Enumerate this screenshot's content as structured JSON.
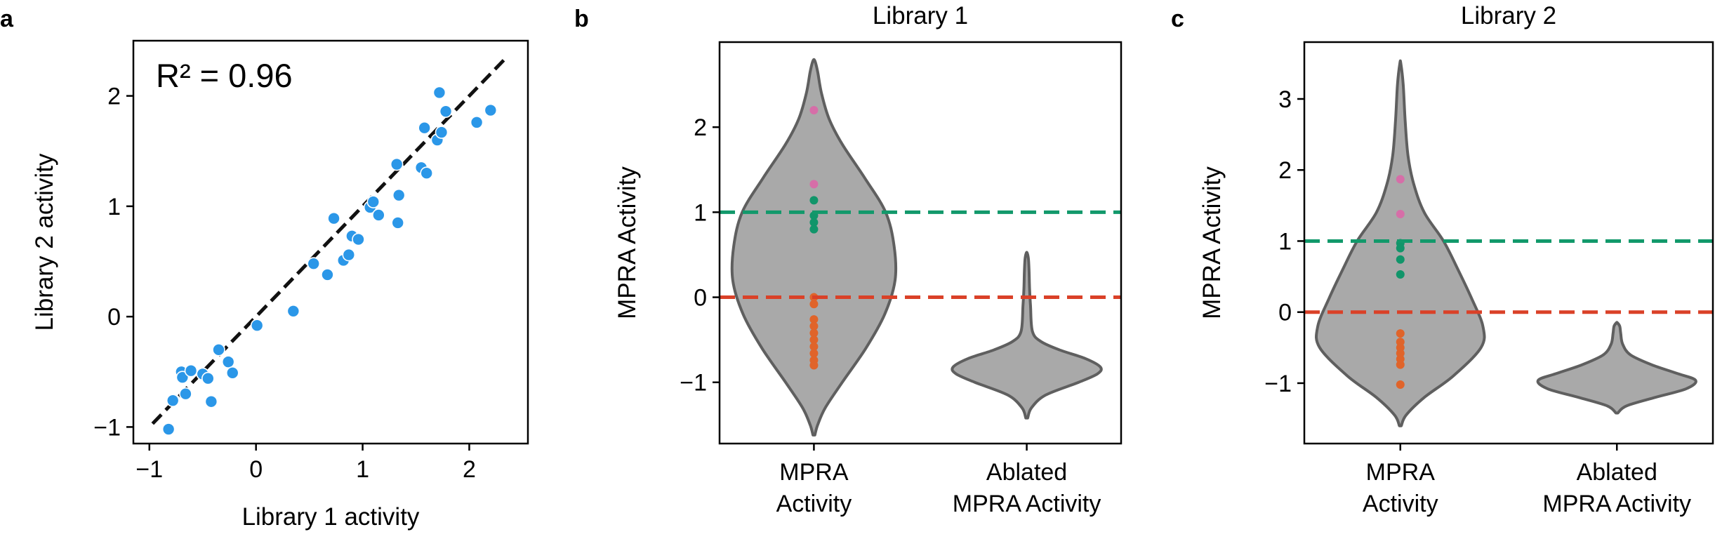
{
  "colors": {
    "scatter": "#2b97e8",
    "fit_line": "#111111",
    "violin_fill": "#a9a9a9",
    "violin_edge": "#5f5f5f",
    "green": "#12996b",
    "red": "#da4128",
    "pink": "#d66ea8",
    "green_dot": "#11956a",
    "orange_dot": "#e0642a"
  },
  "panels": [
    "a",
    "b",
    "c"
  ],
  "chart_data": [
    {
      "panel": "a",
      "type": "scatter",
      "title": "",
      "xlabel": "Library 1 activity",
      "ylabel": "Library 2 activity",
      "xlim": [
        -1.15,
        2.55
      ],
      "ylim": [
        -1.15,
        2.5
      ],
      "xticks": [
        -1,
        0,
        1,
        2
      ],
      "yticks": [
        -1,
        0,
        1,
        2
      ],
      "xtick_labels": [
        "−1",
        "0",
        "1",
        "2"
      ],
      "ytick_labels": [
        "−1",
        "0",
        "1",
        "2"
      ],
      "annotation": "R² = 0.96",
      "fit_line": {
        "x": [
          -0.97,
          2.33
        ],
        "y": [
          -0.97,
          2.33
        ]
      },
      "points": [
        [
          -0.82,
          -1.02
        ],
        [
          -0.78,
          -0.76
        ],
        [
          -0.7,
          -0.5
        ],
        [
          -0.69,
          -0.55
        ],
        [
          -0.66,
          -0.7
        ],
        [
          -0.61,
          -0.49
        ],
        [
          -0.5,
          -0.52
        ],
        [
          -0.45,
          -0.56
        ],
        [
          -0.42,
          -0.77
        ],
        [
          -0.35,
          -0.3
        ],
        [
          -0.26,
          -0.41
        ],
        [
          -0.22,
          -0.51
        ],
        [
          0.01,
          -0.08
        ],
        [
          0.35,
          0.05
        ],
        [
          0.54,
          0.48
        ],
        [
          0.67,
          0.38
        ],
        [
          0.73,
          0.89
        ],
        [
          0.82,
          0.51
        ],
        [
          0.87,
          0.56
        ],
        [
          0.9,
          0.73
        ],
        [
          0.96,
          0.7
        ],
        [
          1.07,
          0.99
        ],
        [
          1.1,
          1.04
        ],
        [
          1.15,
          0.92
        ],
        [
          1.32,
          1.38
        ],
        [
          1.33,
          0.85
        ],
        [
          1.34,
          1.1
        ],
        [
          1.55,
          1.35
        ],
        [
          1.58,
          1.71
        ],
        [
          1.6,
          1.3
        ],
        [
          1.7,
          1.6
        ],
        [
          1.72,
          2.03
        ],
        [
          1.74,
          1.67
        ],
        [
          1.78,
          1.86
        ],
        [
          2.07,
          1.76
        ],
        [
          2.2,
          1.87
        ]
      ]
    },
    {
      "panel": "b",
      "type": "violin",
      "title": "Library 1",
      "xlabel": "",
      "ylabel": "MPRA Activity",
      "ylim": [
        -1.72,
        3.0
      ],
      "yticks": [
        -1,
        0,
        1,
        2
      ],
      "ytick_labels": [
        "−1",
        "0",
        "1",
        "2"
      ],
      "categories": [
        [
          "MPRA",
          "Activity"
        ],
        [
          "Ablated",
          "MPRA Activity"
        ]
      ],
      "hlines": [
        {
          "y": 1,
          "color": "green"
        },
        {
          "y": 0,
          "color": "red"
        }
      ],
      "violins": [
        {
          "ymin": -1.62,
          "ymax": 2.78,
          "profile": [
            [
              -1.62,
              0.01
            ],
            [
              -1.5,
              0.04
            ],
            [
              -1.3,
              0.12
            ],
            [
              -1.0,
              0.3
            ],
            [
              -0.6,
              0.55
            ],
            [
              -0.2,
              0.75
            ],
            [
              0.2,
              0.86
            ],
            [
              0.6,
              0.85
            ],
            [
              1.0,
              0.76
            ],
            [
              1.4,
              0.54
            ],
            [
              1.8,
              0.3
            ],
            [
              2.1,
              0.16
            ],
            [
              2.4,
              0.08
            ],
            [
              2.65,
              0.04
            ],
            [
              2.78,
              0.01
            ]
          ]
        },
        {
          "ymin": -1.42,
          "ymax": 0.52,
          "profile": [
            [
              -1.42,
              0.01
            ],
            [
              -1.3,
              0.05
            ],
            [
              -1.15,
              0.2
            ],
            [
              -1.0,
              0.55
            ],
            [
              -0.9,
              0.75
            ],
            [
              -0.82,
              0.78
            ],
            [
              -0.72,
              0.62
            ],
            [
              -0.62,
              0.35
            ],
            [
              -0.52,
              0.15
            ],
            [
              -0.4,
              0.06
            ],
            [
              -0.1,
              0.04
            ],
            [
              0.1,
              0.03
            ],
            [
              0.3,
              0.025
            ],
            [
              0.45,
              0.018
            ],
            [
              0.52,
              0.005
            ]
          ]
        }
      ],
      "strip_points": [
        {
          "y": 2.2,
          "color": "pink"
        },
        {
          "y": 1.33,
          "color": "pink"
        },
        {
          "y": 1.14,
          "color": "green"
        },
        {
          "y": 0.96,
          "color": "green"
        },
        {
          "y": 0.88,
          "color": "green"
        },
        {
          "y": 0.8,
          "color": "green"
        },
        {
          "y": 0.0,
          "color": "orange"
        },
        {
          "y": -0.08,
          "color": "orange"
        },
        {
          "y": -0.26,
          "color": "orange"
        },
        {
          "y": -0.34,
          "color": "orange"
        },
        {
          "y": -0.42,
          "color": "orange"
        },
        {
          "y": -0.5,
          "color": "orange"
        },
        {
          "y": -0.58,
          "color": "orange"
        },
        {
          "y": -0.66,
          "color": "orange"
        },
        {
          "y": -0.74,
          "color": "orange"
        },
        {
          "y": -0.8,
          "color": "orange"
        }
      ]
    },
    {
      "panel": "c",
      "type": "violin",
      "title": "Library 2",
      "xlabel": "",
      "ylabel": "MPRA Activity",
      "ylim": [
        -1.85,
        3.8
      ],
      "yticks": [
        -1,
        0,
        1,
        2,
        3
      ],
      "ytick_labels": [
        "−1",
        "0",
        "1",
        "2",
        "3"
      ],
      "categories": [
        [
          "MPRA",
          "Activity"
        ],
        [
          "Ablated",
          "MPRA Activity"
        ]
      ],
      "hlines": [
        {
          "y": 1,
          "color": "green"
        },
        {
          "y": 0,
          "color": "red"
        }
      ],
      "violins": [
        {
          "ymin": -1.6,
          "ymax": 3.5,
          "profile": [
            [
              -1.6,
              0.01
            ],
            [
              -1.45,
              0.06
            ],
            [
              -1.2,
              0.25
            ],
            [
              -0.9,
              0.55
            ],
            [
              -0.5,
              0.84
            ],
            [
              -0.2,
              0.86
            ],
            [
              0.2,
              0.74
            ],
            [
              0.6,
              0.6
            ],
            [
              1.0,
              0.45
            ],
            [
              1.4,
              0.25
            ],
            [
              1.8,
              0.14
            ],
            [
              2.2,
              0.08
            ],
            [
              2.7,
              0.05
            ],
            [
              3.2,
              0.03
            ],
            [
              3.5,
              0.005
            ]
          ]
        },
        {
          "ymin": -1.42,
          "ymax": -0.15,
          "profile": [
            [
              -1.42,
              0.01
            ],
            [
              -1.32,
              0.1
            ],
            [
              -1.2,
              0.4
            ],
            [
              -1.08,
              0.72
            ],
            [
              -0.96,
              0.82
            ],
            [
              -0.86,
              0.62
            ],
            [
              -0.74,
              0.36
            ],
            [
              -0.6,
              0.14
            ],
            [
              -0.45,
              0.06
            ],
            [
              -0.3,
              0.04
            ],
            [
              -0.2,
              0.03
            ],
            [
              -0.15,
              0.005
            ]
          ]
        }
      ],
      "strip_points": [
        {
          "y": 1.87,
          "color": "pink"
        },
        {
          "y": 1.38,
          "color": "pink"
        },
        {
          "y": 0.97,
          "color": "green"
        },
        {
          "y": 0.9,
          "color": "green"
        },
        {
          "y": 0.74,
          "color": "green"
        },
        {
          "y": 0.53,
          "color": "green"
        },
        {
          "y": -0.3,
          "color": "orange"
        },
        {
          "y": -0.42,
          "color": "orange"
        },
        {
          "y": -0.5,
          "color": "orange"
        },
        {
          "y": -0.58,
          "color": "orange"
        },
        {
          "y": -0.66,
          "color": "orange"
        },
        {
          "y": -0.74,
          "color": "orange"
        },
        {
          "y": -1.02,
          "color": "orange"
        }
      ]
    }
  ]
}
